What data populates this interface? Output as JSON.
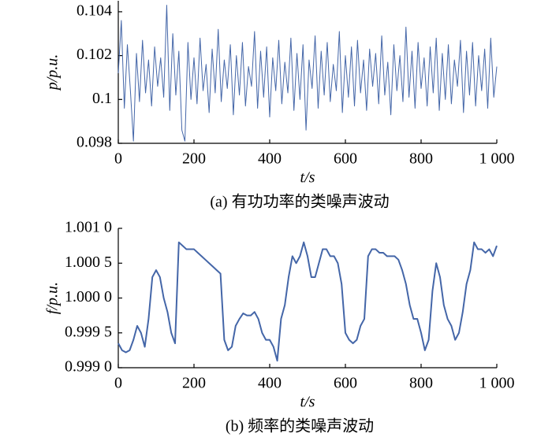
{
  "chart_data": [
    {
      "type": "line",
      "xlabel": "t/s",
      "ylabel": "p/p.u.",
      "caption": "(a)  有功功率的类噪声波动",
      "xlim": [
        0,
        1000
      ],
      "xticks": [
        0,
        200,
        400,
        600,
        800,
        {
          "value": 1000,
          "label": "1 000"
        }
      ],
      "ylim": [
        0.098,
        0.1045
      ],
      "yticks": [
        0.098,
        0.1,
        0.102,
        0.104
      ],
      "yticklabels_note_free": null,
      "series": [
        {
          "color": "#4466a8",
          "x": [
            0,
            8,
            16,
            24,
            32,
            40,
            48,
            56,
            64,
            72,
            80,
            88,
            96,
            104,
            112,
            120,
            128,
            136,
            144,
            152,
            160,
            168,
            176,
            184,
            192,
            200,
            208,
            216,
            224,
            232,
            240,
            248,
            256,
            264,
            272,
            280,
            288,
            296,
            304,
            312,
            320,
            328,
            336,
            344,
            352,
            360,
            368,
            376,
            384,
            392,
            400,
            408,
            416,
            424,
            432,
            440,
            448,
            456,
            464,
            472,
            480,
            488,
            496,
            504,
            512,
            520,
            528,
            536,
            544,
            552,
            560,
            568,
            576,
            584,
            592,
            600,
            608,
            616,
            624,
            632,
            640,
            648,
            656,
            664,
            672,
            680,
            688,
            696,
            704,
            712,
            720,
            728,
            736,
            744,
            752,
            760,
            768,
            776,
            784,
            792,
            800,
            808,
            816,
            824,
            832,
            840,
            848,
            856,
            864,
            872,
            880,
            888,
            896,
            904,
            912,
            920,
            928,
            936,
            944,
            952,
            960,
            968,
            976,
            984,
            992,
            1000
          ],
          "values": [
            0.1012,
            0.1036,
            0.0996,
            0.1025,
            0.1004,
            0.0981,
            0.1021,
            0.0999,
            0.1027,
            0.1003,
            0.1018,
            0.0997,
            0.1024,
            0.1006,
            0.1019,
            0.1001,
            0.1043,
            0.0995,
            0.103,
            0.1002,
            0.1022,
            0.0986,
            0.0981,
            0.1026,
            0.1,
            0.1019,
            0.0998,
            0.1028,
            0.1004,
            0.1016,
            0.0994,
            0.1023,
            0.1003,
            0.1032,
            0.0999,
            0.1018,
            0.1005,
            0.1025,
            0.0993,
            0.102,
            0.1002,
            0.1026,
            0.0997,
            0.1015,
            0.1006,
            0.1031,
            0.0996,
            0.1022,
            0.1001,
            0.1024,
            0.0992,
            0.1019,
            0.1004,
            0.1027,
            0.0998,
            0.1017,
            0.1003,
            0.1028,
            0.0995,
            0.1021,
            0.1,
            0.1025,
            0.0986,
            0.1018,
            0.1005,
            0.1029,
            0.0996,
            0.1022,
            0.1002,
            0.1026,
            0.0999,
            0.1016,
            0.1004,
            0.1031,
            0.0994,
            0.102,
            0.1001,
            0.1024,
            0.0997,
            0.1027,
            0.1003,
            0.1018,
            0.0995,
            0.1023,
            0.1006,
            0.1021,
            0.0998,
            0.1029,
            0.1002,
            0.1017,
            0.0993,
            0.1025,
            0.1004,
            0.102,
            0.0999,
            0.1033,
            0.1001,
            0.1022,
            0.0996,
            0.1026,
            0.1005,
            0.1019,
            0.0997,
            0.1024,
            0.1003,
            0.1028,
            0.0995,
            0.1021,
            0.1,
            0.1025,
            0.0998,
            0.1018,
            0.1006,
            0.1027,
            0.0994,
            0.1022,
            0.1002,
            0.1026,
            0.0997,
            0.102,
            0.1004,
            0.1023,
            0.0996,
            0.1028,
            0.1001,
            0.1015
          ]
        }
      ]
    },
    {
      "type": "line",
      "xlabel": "t/s",
      "ylabel": "f/p.u.",
      "caption": "(b)  频率的类噪声波动",
      "xlim": [
        0,
        1000
      ],
      "xticks": [
        0,
        200,
        400,
        600,
        800,
        {
          "value": 1000,
          "label": "1 000"
        }
      ],
      "ylim": [
        0.999,
        1.001
      ],
      "yticks": [
        {
          "value": 0.999,
          "label": "0.999 0"
        },
        {
          "value": 0.9995,
          "label": "0.999 5"
        },
        {
          "value": 1.0,
          "label": "1.000 0"
        },
        {
          "value": 1.0005,
          "label": "1.000 5"
        },
        {
          "value": 1.001,
          "label": "1.001 0"
        }
      ],
      "series": [
        {
          "color": "#4466a8",
          "x": [
            0,
            10,
            20,
            30,
            40,
            50,
            60,
            70,
            80,
            90,
            100,
            110,
            120,
            130,
            140,
            150,
            160,
            170,
            180,
            190,
            200,
            210,
            220,
            230,
            240,
            250,
            260,
            270,
            280,
            290,
            300,
            310,
            320,
            330,
            340,
            350,
            360,
            370,
            380,
            390,
            400,
            410,
            420,
            430,
            440,
            450,
            460,
            470,
            480,
            490,
            500,
            510,
            520,
            530,
            540,
            550,
            560,
            570,
            580,
            590,
            600,
            610,
            620,
            630,
            640,
            650,
            660,
            670,
            680,
            690,
            700,
            710,
            720,
            730,
            740,
            750,
            760,
            770,
            780,
            790,
            800,
            810,
            820,
            830,
            840,
            850,
            860,
            870,
            880,
            890,
            900,
            910,
            920,
            930,
            940,
            950,
            960,
            970,
            980,
            990,
            1000
          ],
          "values": [
            0.99935,
            0.99925,
            0.99922,
            0.99925,
            0.9994,
            0.9996,
            0.9995,
            0.9993,
            0.9997,
            1.0003,
            1.0004,
            1.0003,
            1.0,
            0.9998,
            0.9995,
            0.99935,
            1.0008,
            1.00075,
            1.0007,
            1.0007,
            1.0007,
            1.00065,
            1.0006,
            1.00055,
            1.0005,
            1.00045,
            1.0004,
            1.00035,
            0.9994,
            0.99925,
            0.9993,
            0.9996,
            0.9997,
            0.99978,
            0.99975,
            0.99975,
            0.9998,
            0.9997,
            0.9995,
            0.9994,
            0.9994,
            0.9993,
            0.9991,
            0.9997,
            0.9999,
            1.0003,
            1.0006,
            1.0005,
            1.0006,
            1.0008,
            1.0006,
            1.0003,
            1.0003,
            1.0005,
            1.0007,
            1.0007,
            1.0006,
            1.0006,
            1.0005,
            1.0002,
            0.9995,
            0.9994,
            0.99935,
            0.9994,
            0.9996,
            0.9997,
            1.0006,
            1.0007,
            1.0007,
            1.00065,
            1.00065,
            1.0006,
            1.0006,
            1.0006,
            1.00055,
            1.0004,
            1.0002,
            0.9999,
            0.9997,
            0.9997,
            0.9995,
            0.99925,
            0.9994,
            1.0001,
            1.0005,
            1.0003,
            0.9999,
            0.9997,
            0.9996,
            0.9994,
            0.9995,
            0.9998,
            1.0002,
            1.0004,
            1.0008,
            1.0007,
            1.0007,
            1.00065,
            1.0007,
            1.0006,
            1.00075
          ]
        }
      ]
    }
  ]
}
